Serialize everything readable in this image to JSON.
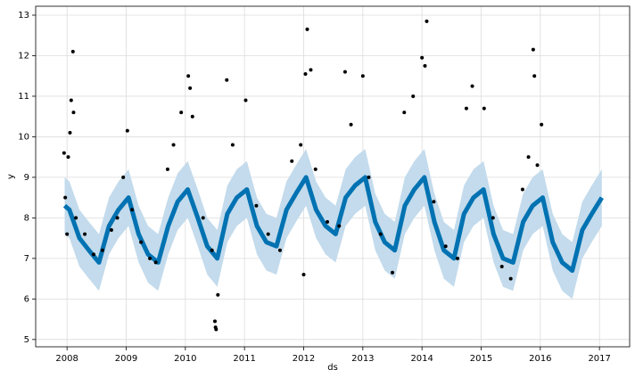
{
  "chart_data": {
    "type": "line",
    "xlabel": "ds",
    "ylabel": "y",
    "xlim": [
      2007.47,
      2017.51
    ],
    "ylim": [
      4.82,
      13.22
    ],
    "xticks": [
      2008,
      2009,
      2010,
      2011,
      2012,
      2013,
      2014,
      2015,
      2016,
      2017
    ],
    "yticks": [
      5,
      6,
      7,
      8,
      9,
      10,
      11,
      12,
      13
    ],
    "grid": true,
    "x": [
      2007.96,
      2008.04,
      2008.21,
      2008.37,
      2008.54,
      2008.71,
      2008.87,
      2009.04,
      2009.21,
      2009.37,
      2009.54,
      2009.71,
      2009.87,
      2010.04,
      2010.21,
      2010.37,
      2010.54,
      2010.71,
      2010.87,
      2011.04,
      2011.21,
      2011.37,
      2011.54,
      2011.71,
      2011.87,
      2012.04,
      2012.21,
      2012.37,
      2012.54,
      2012.71,
      2012.87,
      2013.04,
      2013.21,
      2013.37,
      2013.54,
      2013.71,
      2013.87,
      2014.04,
      2014.21,
      2014.37,
      2014.54,
      2014.71,
      2014.87,
      2015.04,
      2015.21,
      2015.37,
      2015.54,
      2015.71,
      2015.87,
      2016.04,
      2016.21,
      2016.37,
      2016.54,
      2016.71,
      2016.87,
      2017.04
    ],
    "series": [
      {
        "color": "#0072b2",
        "values": [
          8.3,
          8.2,
          7.5,
          7.2,
          6.9,
          7.8,
          8.2,
          8.5,
          7.6,
          7.1,
          6.9,
          7.8,
          8.4,
          8.7,
          8.0,
          7.3,
          7.0,
          8.1,
          8.5,
          8.7,
          7.8,
          7.4,
          7.3,
          8.2,
          8.6,
          9.0,
          8.2,
          7.8,
          7.6,
          8.5,
          8.8,
          9.0,
          7.9,
          7.4,
          7.2,
          8.3,
          8.7,
          9.0,
          7.9,
          7.2,
          7.0,
          8.1,
          8.5,
          8.7,
          7.6,
          7.0,
          6.9,
          7.9,
          8.3,
          8.5,
          7.4,
          6.9,
          6.7,
          7.7,
          8.1,
          8.5
        ]
      }
    ],
    "band": {
      "color": "#c3dbec",
      "lower": [
        7.6,
        7.5,
        6.8,
        6.5,
        6.2,
        7.1,
        7.5,
        7.8,
        6.9,
        6.4,
        6.2,
        7.1,
        7.7,
        8.0,
        7.3,
        6.6,
        6.3,
        7.4,
        7.8,
        8.0,
        7.1,
        6.7,
        6.6,
        7.5,
        7.9,
        8.3,
        7.5,
        7.1,
        6.9,
        7.8,
        8.1,
        8.3,
        7.2,
        6.7,
        6.5,
        7.6,
        8.0,
        8.3,
        7.2,
        6.5,
        6.3,
        7.4,
        7.8,
        8.0,
        6.9,
        6.3,
        6.2,
        7.2,
        7.6,
        7.8,
        6.7,
        6.2,
        6.0,
        7.0,
        7.4,
        7.8
      ],
      "upper": [
        9.0,
        8.9,
        8.2,
        7.9,
        7.6,
        8.5,
        8.9,
        9.2,
        8.3,
        7.8,
        7.6,
        8.5,
        9.1,
        9.4,
        8.7,
        8.0,
        7.7,
        8.8,
        9.2,
        9.4,
        8.5,
        8.1,
        8.0,
        8.9,
        9.3,
        9.7,
        8.9,
        8.5,
        8.3,
        9.2,
        9.5,
        9.7,
        8.6,
        8.1,
        7.9,
        9.0,
        9.4,
        9.7,
        8.6,
        7.9,
        7.7,
        8.8,
        9.2,
        9.4,
        8.3,
        7.7,
        7.6,
        8.6,
        9.0,
        9.2,
        8.1,
        7.6,
        7.4,
        8.4,
        8.8,
        9.2
      ]
    },
    "points": {
      "color": "#000000",
      "x": [
        2007.95,
        2007.97,
        2008.0,
        2008.02,
        2008.05,
        2008.07,
        2008.1,
        2008.11,
        2008.15,
        2008.3,
        2008.45,
        2008.6,
        2008.75,
        2008.85,
        2008.95,
        2009.02,
        2009.1,
        2009.25,
        2009.4,
        2009.5,
        2009.7,
        2009.8,
        2009.93,
        2010.05,
        2010.08,
        2010.12,
        2010.3,
        2010.45,
        2010.5,
        2010.51,
        2010.52,
        2010.55,
        2010.7,
        2010.8,
        2011.02,
        2011.2,
        2011.4,
        2011.6,
        2011.8,
        2011.95,
        2012.0,
        2012.03,
        2012.06,
        2012.12,
        2012.2,
        2012.4,
        2012.6,
        2012.7,
        2012.8,
        2013.0,
        2013.1,
        2013.3,
        2013.5,
        2013.7,
        2013.85,
        2014.0,
        2014.05,
        2014.08,
        2014.2,
        2014.4,
        2014.6,
        2014.75,
        2014.85,
        2015.05,
        2015.2,
        2015.35,
        2015.5,
        2015.7,
        2015.8,
        2015.88,
        2015.9,
        2015.95,
        2016.02
      ],
      "values": [
        9.6,
        8.5,
        7.6,
        9.5,
        10.1,
        10.9,
        12.1,
        10.6,
        8.0,
        7.6,
        7.1,
        7.2,
        7.7,
        8.0,
        9.0,
        10.15,
        8.2,
        7.4,
        7.0,
        6.9,
        9.2,
        9.8,
        10.6,
        11.5,
        11.2,
        10.5,
        8.0,
        7.2,
        5.45,
        5.3,
        5.25,
        6.1,
        11.4,
        9.8,
        10.9,
        8.3,
        7.6,
        7.2,
        9.4,
        9.8,
        6.6,
        11.55,
        12.65,
        11.65,
        9.2,
        7.9,
        7.8,
        11.6,
        10.3,
        11.5,
        9.0,
        7.6,
        6.65,
        10.6,
        11.0,
        11.95,
        11.75,
        12.85,
        8.4,
        7.3,
        7.0,
        10.7,
        11.25,
        10.7,
        8.0,
        6.8,
        6.5,
        8.7,
        9.5,
        12.15,
        11.5,
        9.3,
        10.3
      ]
    }
  }
}
